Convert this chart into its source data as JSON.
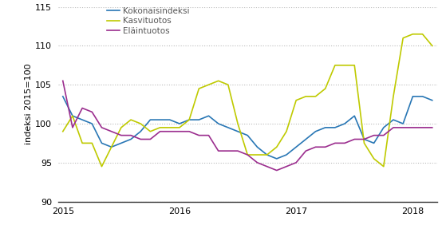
{
  "ylabel": "indeksi 2015=100",
  "ylim": [
    90,
    115
  ],
  "yticks": [
    90,
    95,
    100,
    105,
    110,
    115
  ],
  "xlim": [
    -0.5,
    38.5
  ],
  "xtick_positions": [
    0,
    12,
    24,
    36
  ],
  "xtick_labels": [
    "2015",
    "2016",
    "2017",
    "2018"
  ],
  "colors": {
    "kokonaisindeksi": "#2977B5",
    "kasvituotos": "#BFCA00",
    "elaintuotos": "#9B2D8E"
  },
  "legend_labels": [
    "Kokonaisindeksi",
    "Kasvituotos",
    "Eläintuotos"
  ],
  "kokonaisindeksi": [
    103.5,
    101.0,
    100.5,
    100.0,
    97.5,
    97.0,
    97.5,
    98.0,
    99.0,
    100.5,
    100.5,
    100.5,
    100.0,
    100.5,
    100.5,
    101.0,
    100.0,
    99.5,
    99.0,
    98.5,
    97.0,
    96.0,
    95.5,
    96.0,
    97.0,
    98.0,
    99.0,
    99.5,
    99.5,
    100.0,
    101.0,
    98.0,
    97.5,
    99.5,
    100.5,
    100.0,
    103.5,
    103.5,
    103.0
  ],
  "kasvituotos": [
    99.0,
    101.0,
    97.5,
    97.5,
    94.5,
    97.0,
    99.5,
    100.5,
    100.0,
    99.0,
    99.5,
    99.5,
    99.5,
    100.5,
    104.5,
    105.0,
    105.5,
    105.0,
    100.0,
    96.0,
    96.0,
    96.0,
    97.0,
    99.0,
    103.0,
    103.5,
    103.5,
    104.5,
    107.5,
    107.5,
    107.5,
    97.5,
    95.5,
    94.5,
    103.5,
    111.0,
    111.5,
    111.5,
    110.0
  ],
  "elaintuotos": [
    105.5,
    99.5,
    102.0,
    101.5,
    99.5,
    99.0,
    98.5,
    98.5,
    98.0,
    98.0,
    99.0,
    99.0,
    99.0,
    99.0,
    98.5,
    98.5,
    96.5,
    96.5,
    96.5,
    96.0,
    95.0,
    94.5,
    94.0,
    94.5,
    95.0,
    96.5,
    97.0,
    97.0,
    97.5,
    97.5,
    98.0,
    98.0,
    98.5,
    98.5,
    99.5,
    99.5,
    99.5,
    99.5,
    99.5
  ],
  "grid_color": "#BBBBBB",
  "line_width": 1.2,
  "bg_color": "#FFFFFF"
}
